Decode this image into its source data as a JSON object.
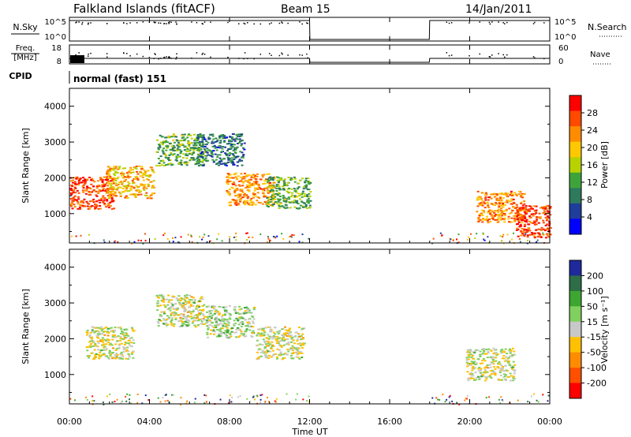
{
  "header": {
    "station": "Falkland Islands (fitACF)",
    "beam": "Beam 15",
    "date": "14/Jan/2011"
  },
  "strips": {
    "nsky_label": "N.Sky",
    "nsky_ticks": [
      "10^5",
      "10^0"
    ],
    "nsearch_label": "N.Search",
    "freq_label": "Freq.",
    "freq_unit": "[MHz]",
    "freq_ticks": [
      "18",
      "8"
    ],
    "nave_label": "Nave",
    "nave_ticks": [
      "60",
      "0"
    ],
    "cpid_label": "CPID",
    "cpid_value": "normal (fast) 151"
  },
  "x_axis": {
    "label": "Time UT",
    "ticks": [
      "00:00",
      "04:00",
      "08:00",
      "12:00",
      "16:00",
      "20:00",
      "00:00"
    ]
  },
  "power_colorbar": {
    "label": "Power [dB]",
    "ticks": [
      "28",
      "24",
      "20",
      "16",
      "12",
      "8",
      "4"
    ],
    "colors": [
      "#ff0000",
      "#ff4a00",
      "#ff8c00",
      "#ffc800",
      "#b8d200",
      "#3ea43a",
      "#2d7a5e",
      "#1f3d9a",
      "#0000ff"
    ]
  },
  "velocity_colorbar": {
    "label": "Velocity [m s⁻¹]",
    "ticks": [
      "200",
      "100",
      "50",
      "15",
      "-15",
      "-50",
      "-100",
      "-200"
    ],
    "colors": [
      "#1e2a9c",
      "#2d6e46",
      "#3da630",
      "#80d060",
      "#c8c8c8",
      "#ffc000",
      "#ff8c00",
      "#ff5000",
      "#ff0000"
    ]
  },
  "chart_data": [
    {
      "type": "line",
      "panel": "N.Sky / N.Search",
      "x": [
        "00:00",
        "00:30",
        "04:00",
        "08:00",
        "12:00",
        "12:01",
        "17:59",
        "18:00",
        "20:00",
        "00:00"
      ],
      "series": [
        {
          "name": "N.Sky",
          "values": [
            100000,
            100000,
            100000,
            100000,
            100000,
            1,
            1,
            100000,
            100000,
            100000
          ]
        }
      ],
      "ylabel": "N.Sky",
      "ylim": [
        1,
        100000
      ],
      "y_scale": "log"
    },
    {
      "type": "line",
      "panel": "Freq. / Nave",
      "x": [
        "00:00",
        "00:30",
        "04:00",
        "08:00",
        "12:00",
        "12:01",
        "17:59",
        "18:00",
        "20:00",
        "00:00"
      ],
      "series": [
        {
          "name": "Freq.",
          "values": [
            10.5,
            10.5,
            10.5,
            10.5,
            10.5,
            8,
            8,
            10.5,
            10.5,
            10.5
          ]
        }
      ],
      "ylabel": "Freq. [MHz]",
      "ylim": [
        8,
        18
      ]
    },
    {
      "type": "heatmap",
      "panel": "Power",
      "title": "Power [dB]",
      "xlabel": "Time UT",
      "ylabel": "Slant Range [km]",
      "xlim": [
        "00:00",
        "24:00"
      ],
      "ylim": [
        180,
        4500
      ],
      "y_ticks": [
        1000,
        2000,
        3000,
        4000
      ],
      "color_range": [
        0,
        30
      ],
      "gaps": [
        [
          "12:00",
          "18:00"
        ]
      ],
      "features": [
        {
          "time": "01:00",
          "range_km": 1600,
          "value_db": 26
        },
        {
          "time": "03:00",
          "range_km": 1900,
          "value_db": 20
        },
        {
          "time": "05:30",
          "range_km": 2800,
          "value_db": 12
        },
        {
          "time": "07:30",
          "range_km": 2800,
          "value_db": 8
        },
        {
          "time": "09:00",
          "range_km": 1700,
          "value_db": 22
        },
        {
          "time": "11:00",
          "range_km": 1600,
          "value_db": 12
        },
        {
          "time": "21:30",
          "range_km": 1200,
          "value_db": 22
        },
        {
          "time": "23:30",
          "range_km": 800,
          "value_db": 26
        }
      ]
    },
    {
      "type": "heatmap",
      "panel": "Velocity",
      "title": "Velocity [m s⁻¹]",
      "xlabel": "Time UT",
      "ylabel": "Slant Range [km]",
      "xlim": [
        "00:00",
        "24:00"
      ],
      "ylim": [
        180,
        4500
      ],
      "y_ticks": [
        1000,
        2000,
        3000,
        4000
      ],
      "color_range": [
        -200,
        200
      ],
      "gaps": [
        [
          "12:00",
          "18:00"
        ]
      ],
      "features": [
        {
          "time": "02:00",
          "range_km": 1900,
          "velocity": 0
        },
        {
          "time": "05:30",
          "range_km": 2800,
          "velocity": 0
        },
        {
          "time": "08:00",
          "range_km": 2500,
          "velocity": 30
        },
        {
          "time": "10:30",
          "range_km": 1900,
          "velocity": 0
        },
        {
          "time": "21:00",
          "range_km": 1300,
          "velocity": 0
        }
      ]
    }
  ]
}
